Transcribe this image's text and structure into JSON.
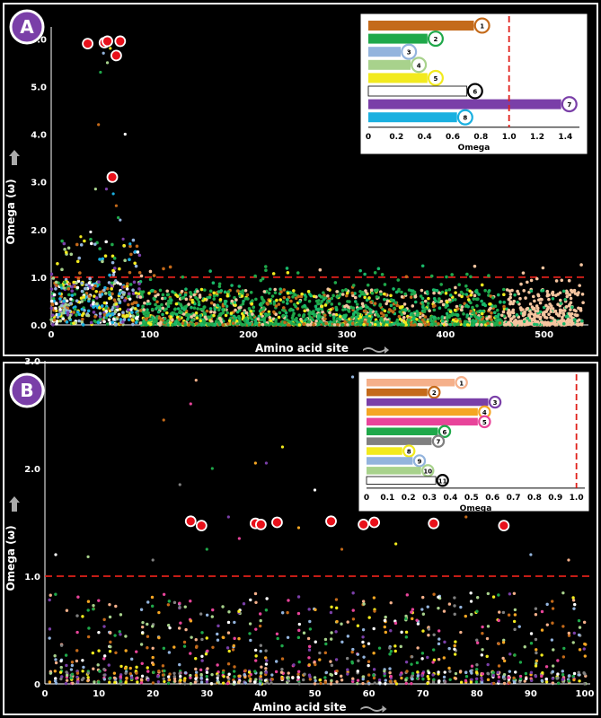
{
  "panels": [
    {
      "letter": "A",
      "xlabel": "Amino acid site",
      "ylabel": "Omega (ω)",
      "xticks": [
        "0",
        "100",
        "200",
        "300",
        "400",
        "500"
      ],
      "yticks": [
        "0.0",
        "1.0",
        "2.0",
        "3.0",
        "4.0",
        "5.0",
        "6.0"
      ],
      "inset_xlabel": "Omega",
      "inset_ticks": [
        "0",
        "0.2",
        "0.4",
        "0.6",
        "0.8",
        "1.0",
        "1.2",
        "1.4"
      ],
      "inset_labels": [
        "1",
        "2",
        "3",
        "4",
        "5",
        "6",
        "7",
        "8"
      ]
    },
    {
      "letter": "B",
      "xlabel": "Amino acid site",
      "ylabel": "Omega (ω)",
      "xticks": [
        "0",
        "10",
        "20",
        "30",
        "40",
        "50",
        "60",
        "70",
        "80",
        "90",
        "100"
      ],
      "yticks": [
        "0",
        "1.0",
        "2.0",
        "3.0"
      ],
      "inset_xlabel": "Omega",
      "inset_ticks": [
        "0",
        "0.1",
        "0.2",
        "0.3",
        "0.4",
        "0.5",
        "0.6",
        "0.7",
        "0.8",
        "0.9",
        "1.0"
      ],
      "inset_labels": [
        "1",
        "2",
        "3",
        "4",
        "5",
        "6",
        "7",
        "8",
        "9",
        "10",
        "11"
      ]
    }
  ],
  "chart_data": [
    {
      "type": "scatter",
      "panel": "A",
      "xlabel": "Amino acid site",
      "ylabel": "Omega (ω)",
      "xlim": [
        0,
        545
      ],
      "ylim": [
        0,
        6.25
      ],
      "threshold": 1.0,
      "highlighted_sites": [
        {
          "x": 37,
          "y": 5.9
        },
        {
          "x": 54,
          "y": 5.92
        },
        {
          "x": 57,
          "y": 5.95
        },
        {
          "x": 70,
          "y": 5.95
        },
        {
          "x": 66,
          "y": 5.65
        },
        {
          "x": 62,
          "y": 3.1
        }
      ],
      "peak_points": [
        {
          "x": 48,
          "y": 4.2
        },
        {
          "x": 50,
          "y": 5.3
        },
        {
          "x": 53,
          "y": 5.7
        },
        {
          "x": 57,
          "y": 5.5
        },
        {
          "x": 60,
          "y": 5.8
        },
        {
          "x": 75,
          "y": 4.0
        },
        {
          "x": 56,
          "y": 2.85
        },
        {
          "x": 63,
          "y": 2.75
        },
        {
          "x": 66,
          "y": 2.5
        },
        {
          "x": 68,
          "y": 2.25
        },
        {
          "x": 70,
          "y": 2.2
        },
        {
          "x": 45,
          "y": 2.85
        },
        {
          "x": 30,
          "y": 1.85
        },
        {
          "x": 40,
          "y": 1.95
        },
        {
          "x": 73,
          "y": 1.8
        },
        {
          "x": 80,
          "y": 1.7
        }
      ],
      "series_colors": [
        "#c46a1a",
        "#1fa84a",
        "#93b4dd",
        "#a8d28c",
        "#f2ea1e",
        "#ffffff",
        "#7a3fa8",
        "#1ab0e0",
        "#f5c5a0",
        "#19b86a"
      ],
      "inset": {
        "type": "bar",
        "orientation": "horizontal",
        "xlabel": "Omega",
        "xlim": [
          0,
          1.5
        ],
        "threshold": 1.0,
        "categories": [
          "1",
          "2",
          "3",
          "4",
          "5",
          "6",
          "7",
          "8"
        ],
        "values": [
          0.75,
          0.42,
          0.23,
          0.3,
          0.42,
          0.7,
          1.37,
          0.63
        ],
        "colors": [
          "#c46a1a",
          "#1fa84a",
          "#93b4dd",
          "#a8d28c",
          "#f2ea1e",
          "#ffffff",
          "#7a3fa8",
          "#1ab0e0"
        ]
      }
    },
    {
      "type": "scatter",
      "panel": "B",
      "xlabel": "Amino acid site",
      "ylabel": "Omega (ω)",
      "xlim": [
        0,
        101
      ],
      "ylim": [
        0,
        3.0
      ],
      "threshold": 1.0,
      "highlighted_sites": [
        {
          "x": 27,
          "y": 1.51
        },
        {
          "x": 29,
          "y": 1.47
        },
        {
          "x": 39,
          "y": 1.49
        },
        {
          "x": 40,
          "y": 1.48
        },
        {
          "x": 43,
          "y": 1.5
        },
        {
          "x": 53,
          "y": 1.51
        },
        {
          "x": 59,
          "y": 1.48
        },
        {
          "x": 61,
          "y": 1.5
        },
        {
          "x": 72,
          "y": 1.49
        },
        {
          "x": 85,
          "y": 1.47
        }
      ],
      "high_points": [
        {
          "x": 28,
          "y": 2.82
        },
        {
          "x": 22,
          "y": 2.45
        },
        {
          "x": 41,
          "y": 2.05
        },
        {
          "x": 39,
          "y": 2.05
        },
        {
          "x": 27,
          "y": 2.6
        },
        {
          "x": 31,
          "y": 2.0
        },
        {
          "x": 25,
          "y": 1.85
        },
        {
          "x": 44,
          "y": 2.2
        },
        {
          "x": 57,
          "y": 2.85
        },
        {
          "x": 82,
          "y": 2.5
        },
        {
          "x": 50,
          "y": 1.8
        },
        {
          "x": 62,
          "y": 1.9
        },
        {
          "x": 78,
          "y": 1.55
        },
        {
          "x": 34,
          "y": 1.55
        },
        {
          "x": 47,
          "y": 1.45
        },
        {
          "x": 36,
          "y": 1.35
        },
        {
          "x": 30,
          "y": 1.25
        },
        {
          "x": 20,
          "y": 1.15
        },
        {
          "x": 65,
          "y": 1.3
        },
        {
          "x": 90,
          "y": 1.2
        },
        {
          "x": 8,
          "y": 1.18
        },
        {
          "x": 2,
          "y": 1.2
        },
        {
          "x": 97,
          "y": 1.15
        },
        {
          "x": 55,
          "y": 1.25
        }
      ],
      "series_colors": [
        "#f5b08a",
        "#c46a1a",
        "#7a3fa8",
        "#f5a623",
        "#e8449a",
        "#1fa84a",
        "#808080",
        "#f2ea1e",
        "#93b4dd",
        "#a8d28c",
        "#ffffff"
      ],
      "inset": {
        "type": "bar",
        "orientation": "horizontal",
        "xlabel": "Omega",
        "xlim": [
          0,
          1.04
        ],
        "threshold": 1.0,
        "categories": [
          "1",
          "2",
          "3",
          "4",
          "5",
          "6",
          "7",
          "8",
          "9",
          "10",
          "11"
        ],
        "values": [
          0.42,
          0.29,
          0.58,
          0.53,
          0.53,
          0.34,
          0.31,
          0.17,
          0.22,
          0.26,
          0.33
        ],
        "colors": [
          "#f5b08a",
          "#c46a1a",
          "#7a3fa8",
          "#f5a623",
          "#e8449a",
          "#1fa84a",
          "#808080",
          "#f2ea1e",
          "#93b4dd",
          "#a8d28c",
          "#ffffff"
        ]
      }
    }
  ]
}
